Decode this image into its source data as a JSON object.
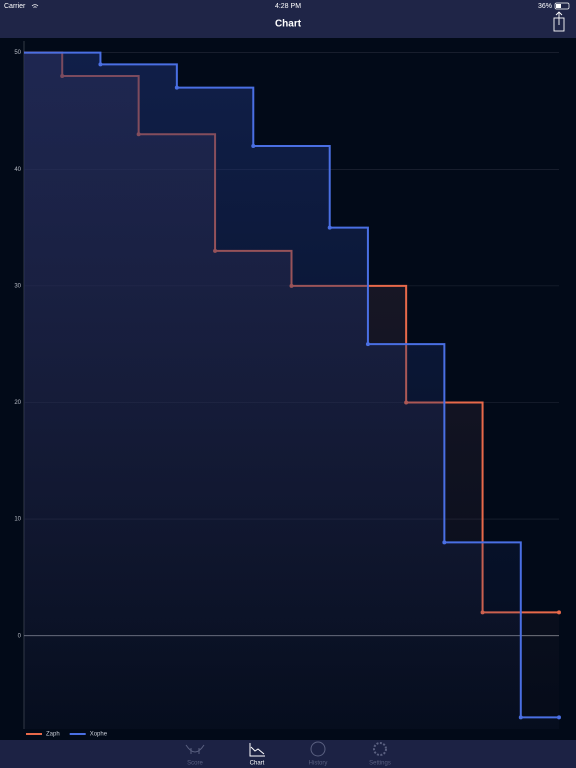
{
  "status_bar": {
    "carrier": "Carrier",
    "time": "4:28 PM",
    "battery": "36%"
  },
  "nav_bar": {
    "title": "Chart"
  },
  "chart_data": {
    "type": "line",
    "step": true,
    "series": [
      {
        "name": "Zaph",
        "color": "#e8694a",
        "x": [
          0,
          1,
          3,
          5,
          7,
          10,
          12,
          14
        ],
        "values": [
          50,
          48,
          43,
          33,
          30,
          20,
          2,
          2
        ]
      },
      {
        "name": "Xophe",
        "color": "#4a6fe3",
        "x": [
          0,
          2,
          4,
          6,
          8,
          9,
          11,
          13,
          14
        ],
        "values": [
          50,
          49,
          47,
          42,
          35,
          25,
          8,
          -7,
          -7
        ]
      }
    ],
    "xlim": [
      0,
      14
    ],
    "ylim": [
      -8,
      51
    ],
    "yticks": [
      0,
      10,
      20,
      30,
      40,
      50
    ],
    "grid": true,
    "legend": "bottom-left"
  },
  "tab_bar": {
    "items": [
      "Score",
      "Chart",
      "History",
      "Settings"
    ]
  }
}
